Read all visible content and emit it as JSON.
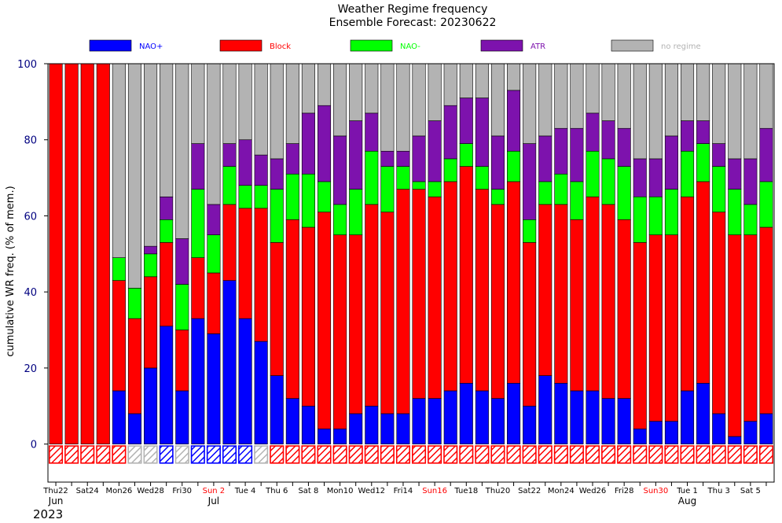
{
  "chart_data": {
    "type": "bar",
    "stacked": true,
    "title": "Weather Regime frequency",
    "subtitle": "Ensemble Forecast: 20230622",
    "ylabel": "cumulative WR freq. (% of mem.)",
    "ylim": [
      -10,
      100
    ],
    "yticks": [
      0,
      20,
      40,
      60,
      80,
      100
    ],
    "year_label": "2023",
    "month_labels": [
      {
        "text": "Jun",
        "index": 0
      },
      {
        "text": "Jul",
        "index": 10
      },
      {
        "text": "Aug",
        "index": 40
      }
    ],
    "series": [
      {
        "name": "NAO+",
        "color": "#0000ff",
        "values": [
          0,
          0,
          0,
          0,
          14,
          8,
          20,
          31,
          14,
          33,
          29,
          43,
          33,
          27,
          18,
          12,
          10,
          4,
          4,
          8,
          10,
          8,
          8,
          12,
          12,
          14,
          16,
          14,
          12,
          16,
          10,
          18,
          16,
          14,
          14,
          12,
          12,
          4,
          6,
          6,
          14,
          16,
          8,
          2,
          6,
          8
        ]
      },
      {
        "name": "Block",
        "color": "#ff0000",
        "values": [
          100,
          100,
          100,
          100,
          29,
          25,
          24,
          22,
          16,
          16,
          16,
          20,
          29,
          35,
          35,
          47,
          47,
          57,
          51,
          47,
          53,
          53,
          59,
          55,
          53,
          55,
          57,
          53,
          51,
          53,
          43,
          45,
          47,
          45,
          51,
          51,
          47,
          49,
          49,
          49,
          51,
          53,
          53,
          53,
          49,
          49
        ]
      },
      {
        "name": "NAO-",
        "color": "#00ff00",
        "values": [
          0,
          0,
          0,
          0,
          6,
          8,
          6,
          6,
          12,
          18,
          10,
          10,
          6,
          6,
          14,
          12,
          14,
          8,
          8,
          12,
          14,
          12,
          6,
          2,
          4,
          6,
          6,
          6,
          4,
          8,
          6,
          6,
          8,
          10,
          12,
          12,
          14,
          12,
          10,
          12,
          12,
          10,
          12,
          12,
          8,
          12
        ]
      },
      {
        "name": "ATR",
        "color": "#7d12ad",
        "values": [
          0,
          0,
          0,
          0,
          0,
          0,
          2,
          6,
          12,
          12,
          8,
          6,
          12,
          8,
          8,
          8,
          16,
          20,
          18,
          18,
          10,
          4,
          4,
          12,
          16,
          14,
          12,
          18,
          14,
          16,
          20,
          12,
          12,
          14,
          10,
          10,
          10,
          10,
          10,
          14,
          8,
          6,
          6,
          8,
          12,
          14
        ]
      },
      {
        "name": "no regime",
        "color": "#b3b3b3",
        "values": [
          0,
          0,
          0,
          0,
          51,
          59,
          48,
          35,
          46,
          21,
          37,
          21,
          20,
          24,
          25,
          21,
          13,
          11,
          19,
          15,
          13,
          23,
          23,
          19,
          15,
          11,
          9,
          9,
          19,
          7,
          21,
          19,
          17,
          17,
          13,
          15,
          17,
          25,
          25,
          19,
          15,
          15,
          21,
          25,
          25,
          17
        ]
      }
    ],
    "marker_colors": [
      "Block",
      "Block",
      "Block",
      "Block",
      "Block",
      "no regime",
      "no regime",
      "NAO+",
      "no regime",
      "NAO+",
      "NAO+",
      "NAO+",
      "NAO+",
      "no regime",
      "Block",
      "Block",
      "Block",
      "Block",
      "Block",
      "Block",
      "Block",
      "Block",
      "Block",
      "Block",
      "Block",
      "Block",
      "Block",
      "Block",
      "Block",
      "Block",
      "Block",
      "Block",
      "Block",
      "Block",
      "Block",
      "Block",
      "Block",
      "Block",
      "Block",
      "Block",
      "Block",
      "Block",
      "Block",
      "Block",
      "Block",
      "Block"
    ],
    "categories": [
      "Thu22",
      "",
      "Sat24",
      "",
      "Mon26",
      "",
      "Wed28",
      "",
      "Fri30",
      "",
      "Sun 2",
      "",
      "Tue 4",
      "",
      "Thu 6",
      "",
      "Sat 8",
      "",
      "Mon10",
      "",
      "Wed12",
      "",
      "Fri14",
      "",
      "Sun16",
      "",
      "Tue18",
      "",
      "Thu20",
      "",
      "Sat22",
      "",
      "Mon24",
      "",
      "Wed26",
      "",
      "Fri28",
      "",
      "Sun30",
      "",
      "Tue 1",
      "",
      "Thu 3",
      "",
      "Sat 5",
      ""
    ],
    "sunday_color": "#ff0000",
    "sunday_labels": [
      "Sun 2",
      "Sun16",
      "Sun30"
    ]
  }
}
